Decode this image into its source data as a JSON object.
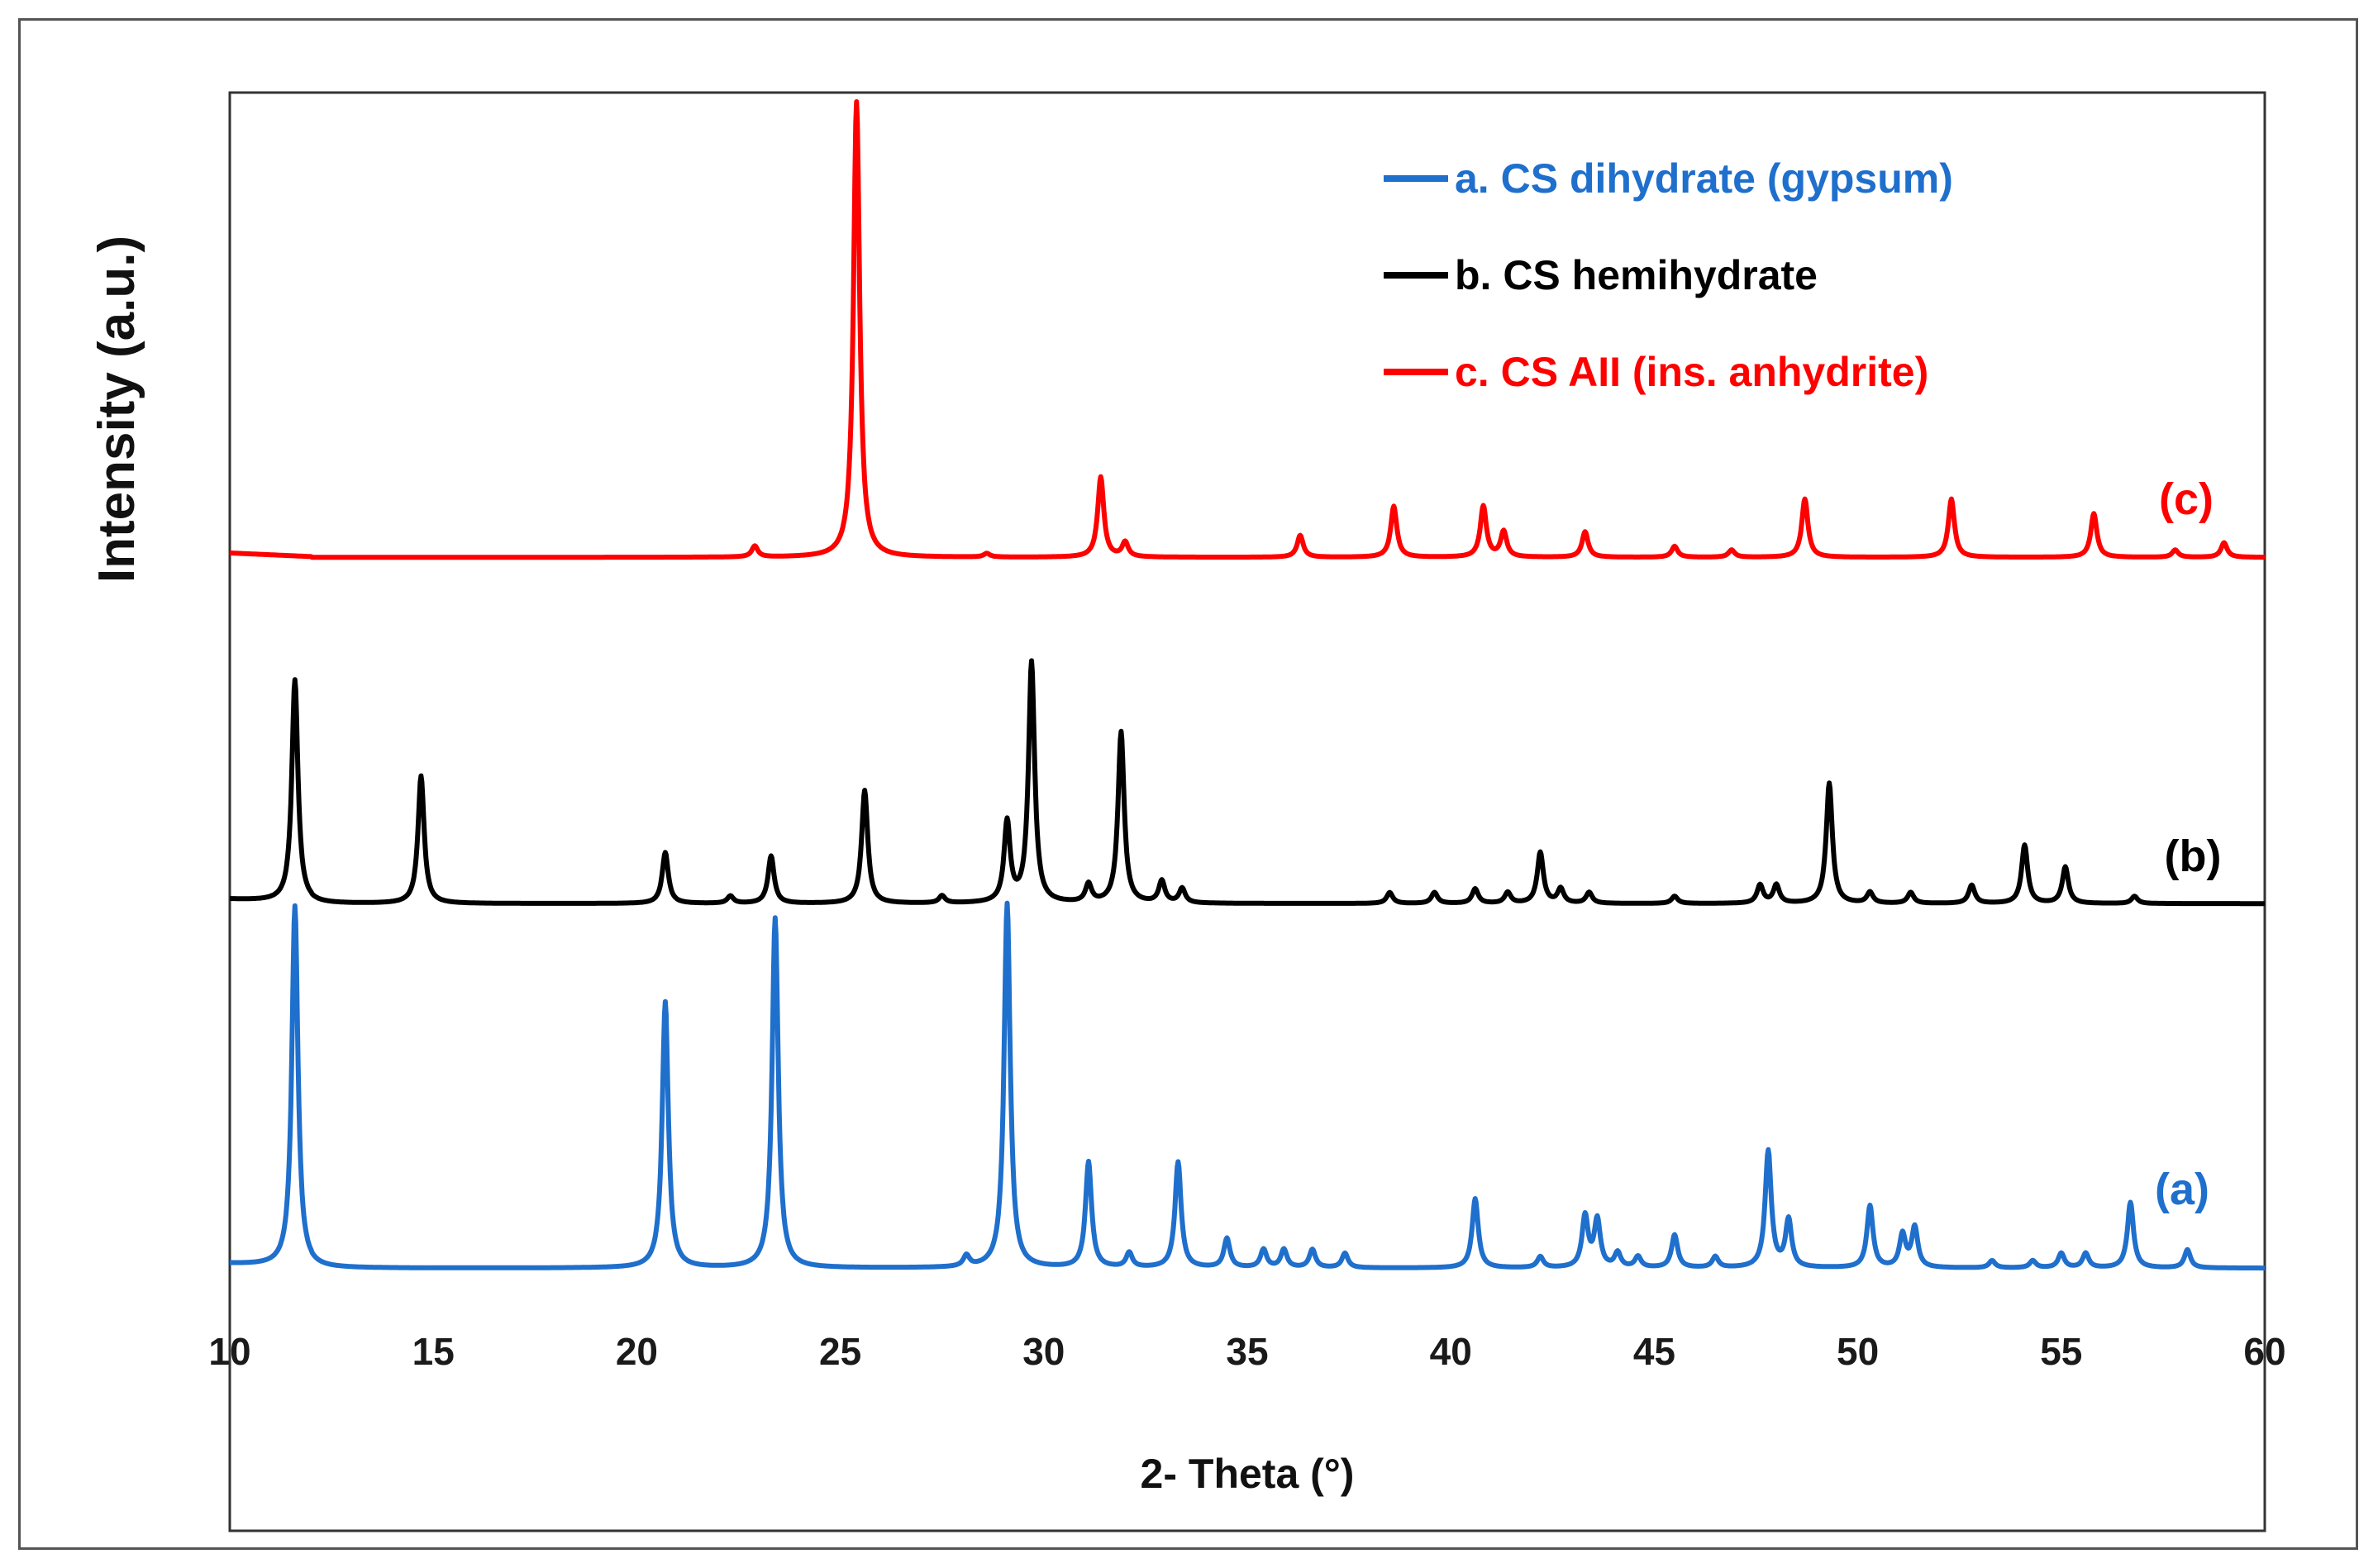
{
  "chart_data": {
    "type": "line",
    "title": "",
    "xlabel": "2- Theta (°)",
    "ylabel": "Intensity (a.u.)",
    "xlim": [
      10,
      60
    ],
    "x_ticks": [
      10,
      15,
      20,
      25,
      30,
      35,
      40,
      45,
      50,
      55,
      60
    ],
    "ylim": [
      0,
      1
    ],
    "y_ticks_shown": false,
    "grid": false,
    "legend_position": "top-right",
    "legend": [
      {
        "text": "a. CS dihydrate (gypsum)",
        "color": "#1f6fcc"
      },
      {
        "text": "b. CS hemihydrate",
        "color": "#000000"
      },
      {
        "text": "c. CS AII (ins. anhydrite)",
        "color": "#ff0000"
      }
    ],
    "series": [
      {
        "name": "a. CS dihydrate (gypsum)",
        "label": "(a)",
        "color": "#1f6fcc",
        "offset": 0.0,
        "peaks": [
          [
            11.6,
            0.99
          ],
          [
            20.7,
            0.73
          ],
          [
            23.4,
            0.96
          ],
          [
            28.1,
            0.03
          ],
          [
            29.1,
            1.0
          ],
          [
            31.1,
            0.29
          ],
          [
            32.1,
            0.04
          ],
          [
            33.3,
            0.29
          ],
          [
            34.5,
            0.08
          ],
          [
            35.4,
            0.05
          ],
          [
            35.9,
            0.05
          ],
          [
            36.6,
            0.05
          ],
          [
            37.4,
            0.04
          ],
          [
            40.6,
            0.19
          ],
          [
            42.2,
            0.03
          ],
          [
            43.3,
            0.14
          ],
          [
            43.6,
            0.13
          ],
          [
            44.1,
            0.04
          ],
          [
            44.6,
            0.03
          ],
          [
            45.5,
            0.09
          ],
          [
            46.5,
            0.03
          ],
          [
            47.8,
            0.32
          ],
          [
            48.3,
            0.13
          ],
          [
            50.3,
            0.17
          ],
          [
            51.1,
            0.09
          ],
          [
            51.4,
            0.11
          ],
          [
            53.3,
            0.02
          ],
          [
            54.3,
            0.02
          ],
          [
            55.0,
            0.04
          ],
          [
            55.6,
            0.04
          ],
          [
            56.7,
            0.18
          ],
          [
            58.1,
            0.05
          ]
        ]
      },
      {
        "name": "b. CS hemihydrate",
        "label": "(b)",
        "color": "#000000",
        "offset": 1.0,
        "peaks": [
          [
            11.6,
            0.61
          ],
          [
            14.7,
            0.35
          ],
          [
            20.7,
            0.14
          ],
          [
            22.3,
            0.02
          ],
          [
            23.3,
            0.13
          ],
          [
            25.6,
            0.31
          ],
          [
            27.5,
            0.02
          ],
          [
            29.1,
            0.22
          ],
          [
            29.7,
            0.66
          ],
          [
            31.1,
            0.05
          ],
          [
            31.9,
            0.47
          ],
          [
            32.9,
            0.06
          ],
          [
            33.4,
            0.04
          ],
          [
            38.5,
            0.03
          ],
          [
            39.6,
            0.03
          ],
          [
            40.6,
            0.04
          ],
          [
            41.4,
            0.03
          ],
          [
            42.2,
            0.14
          ],
          [
            42.7,
            0.04
          ],
          [
            43.4,
            0.03
          ],
          [
            45.5,
            0.02
          ],
          [
            47.6,
            0.05
          ],
          [
            48.0,
            0.05
          ],
          [
            49.3,
            0.33
          ],
          [
            50.3,
            0.03
          ],
          [
            51.3,
            0.03
          ],
          [
            52.8,
            0.05
          ],
          [
            54.1,
            0.16
          ],
          [
            55.1,
            0.1
          ],
          [
            56.8,
            0.02
          ]
        ]
      },
      {
        "name": "c. CS AII (ins. anhydrite)",
        "label": "(c)",
        "color": "#ff0000",
        "offset": 1.95,
        "peaks": [
          [
            22.9,
            0.03
          ],
          [
            25.4,
            1.25
          ],
          [
            28.6,
            0.01
          ],
          [
            31.4,
            0.22
          ],
          [
            32.0,
            0.04
          ],
          [
            36.3,
            0.06
          ],
          [
            38.6,
            0.14
          ],
          [
            40.8,
            0.14
          ],
          [
            41.3,
            0.07
          ],
          [
            43.3,
            0.07
          ],
          [
            45.5,
            0.03
          ],
          [
            46.9,
            0.02
          ],
          [
            48.7,
            0.16
          ],
          [
            52.3,
            0.16
          ],
          [
            55.8,
            0.12
          ],
          [
            57.8,
            0.02
          ],
          [
            59.0,
            0.04
          ]
        ]
      }
    ]
  }
}
